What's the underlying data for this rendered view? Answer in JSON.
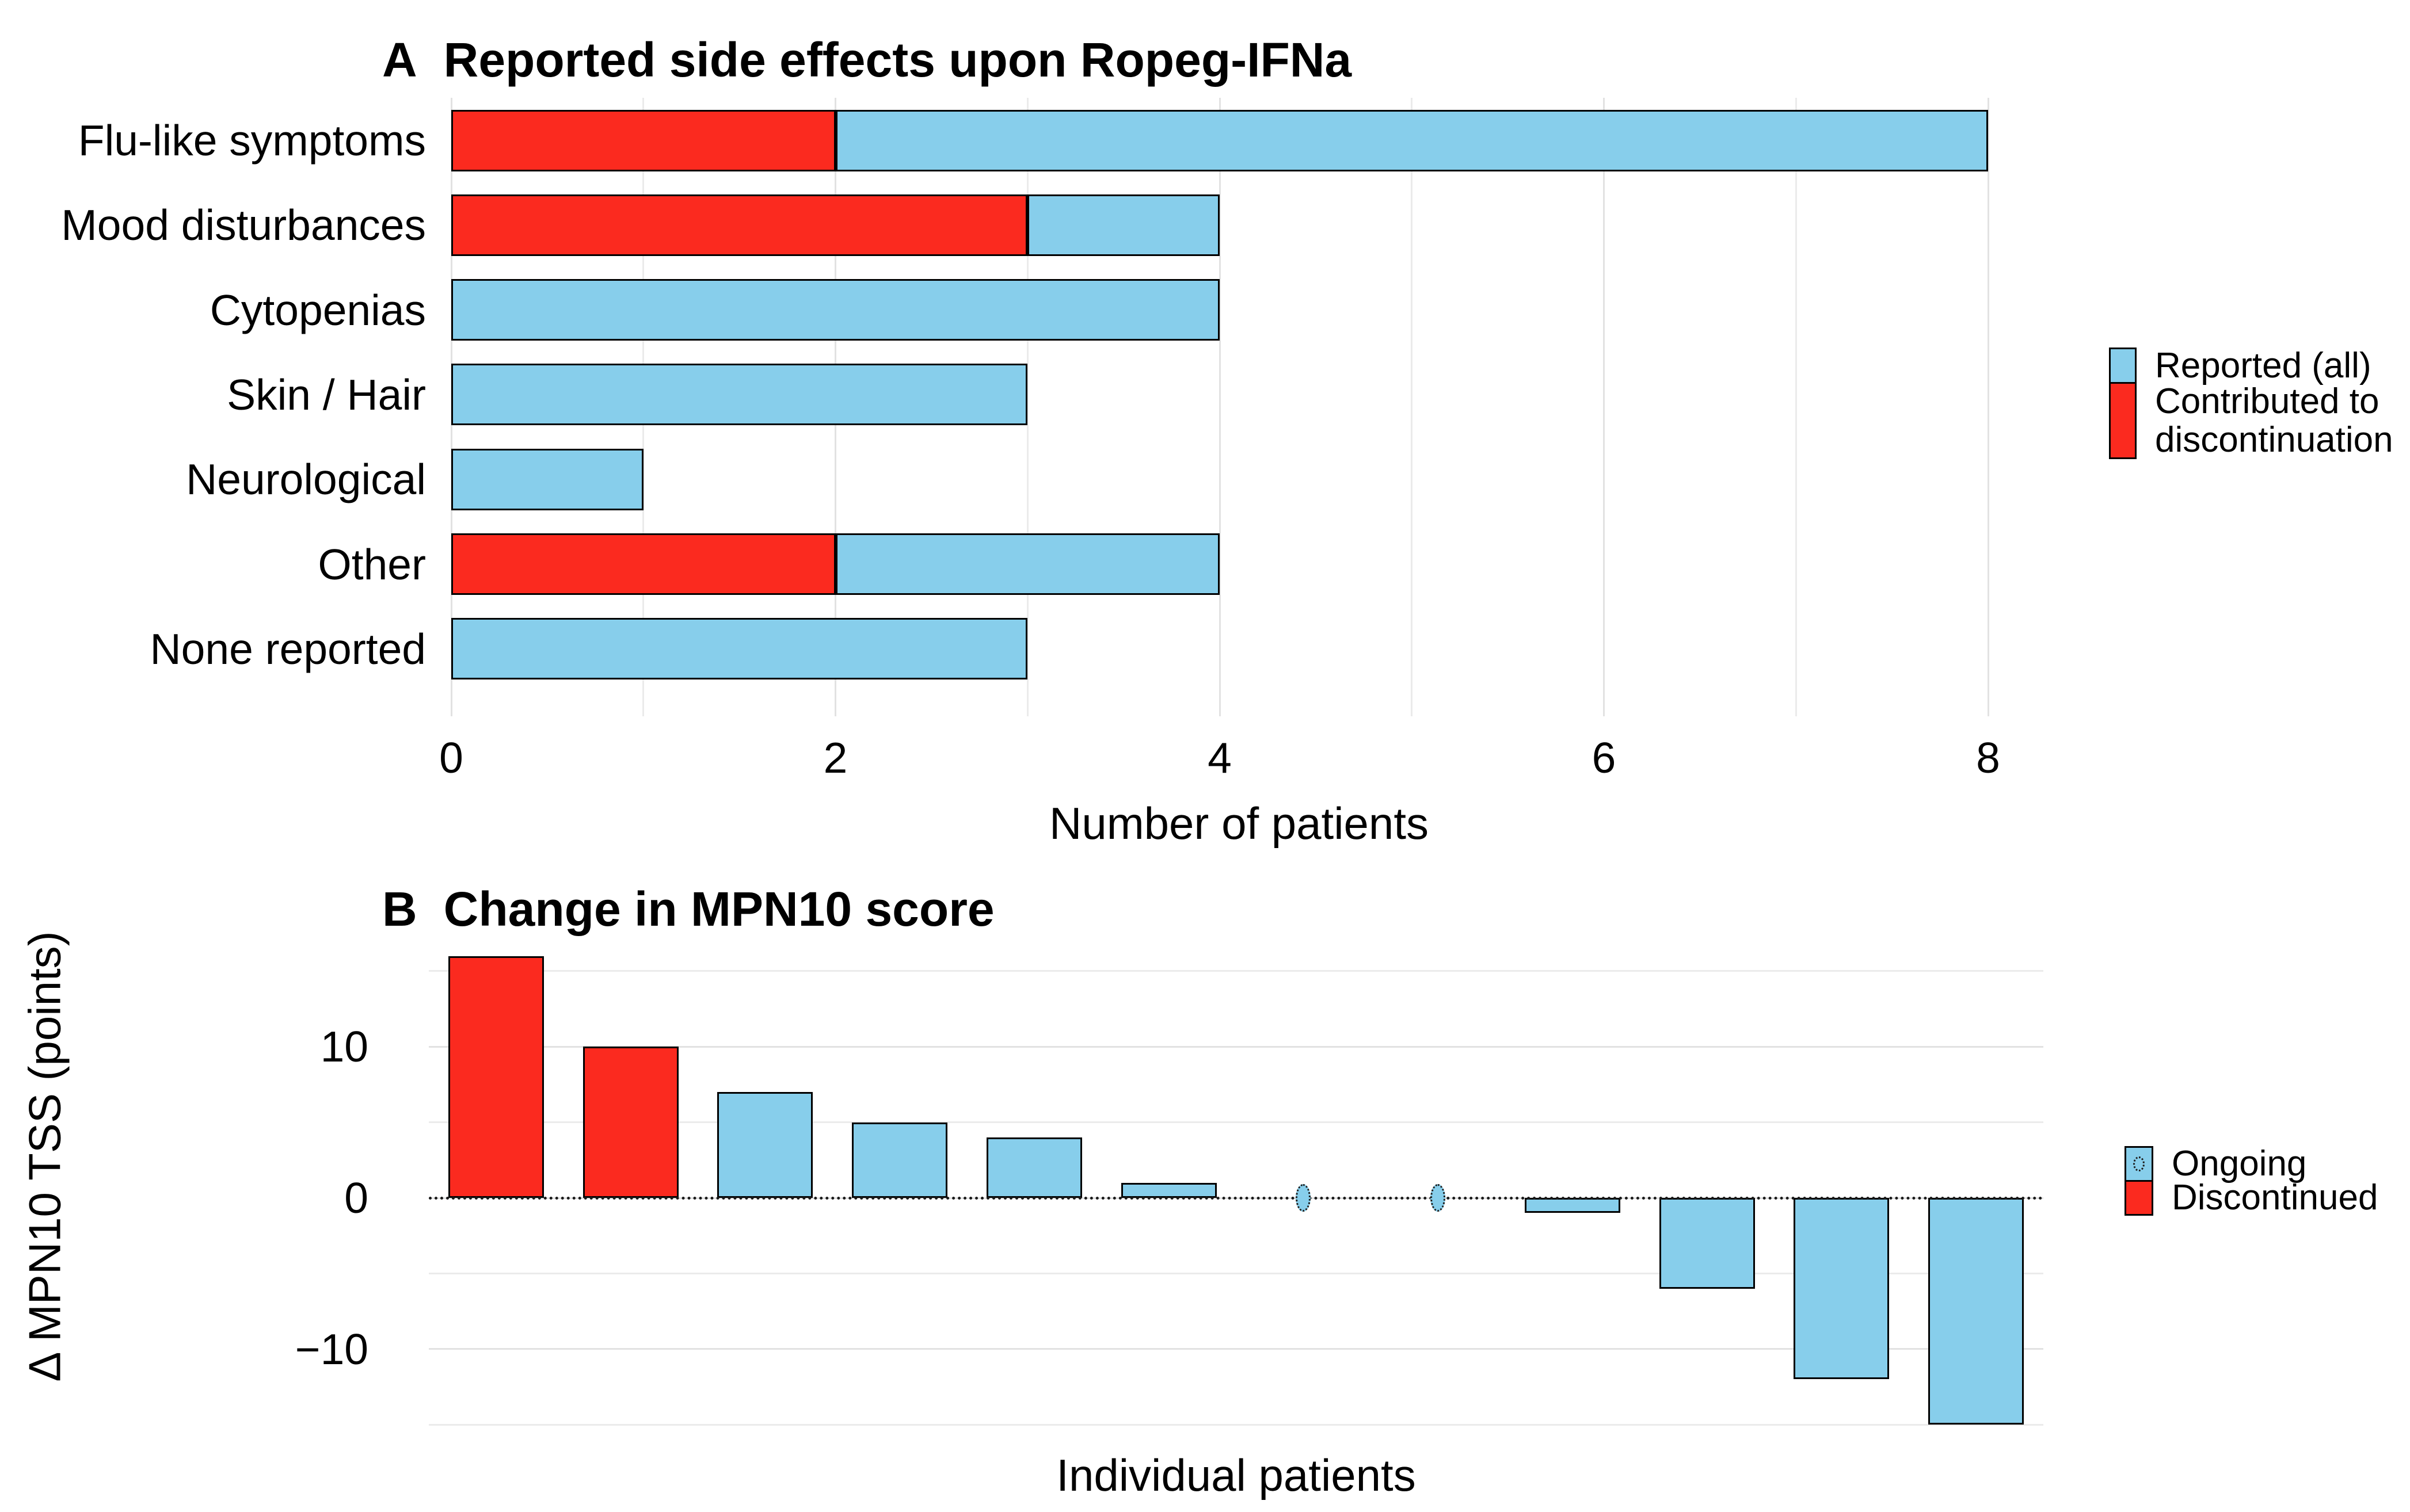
{
  "colors": {
    "reported_blue": "#87CEEB",
    "discontinued_red": "#FB2A1F",
    "bar_outline": "#000000",
    "gridline": "#EBEBEB",
    "gridline_major": "#E2E2E2",
    "zero_line": "#1A1A1A",
    "background": "#FFFFFF",
    "text": "#000000"
  },
  "panel_a": {
    "tag": "A",
    "title": "Reported side effects upon Ropeg-IFNa",
    "x_axis_label": "Number of patients",
    "x_ticks": [
      0,
      2,
      4,
      6,
      8
    ],
    "x_max": 8,
    "categories": [
      {
        "label": "Flu-like symptoms",
        "reported_total": 8,
        "contributed_to_discontinuation": 2
      },
      {
        "label": "Mood disturbances",
        "reported_total": 4,
        "contributed_to_discontinuation": 3
      },
      {
        "label": "Cytopenias",
        "reported_total": 4,
        "contributed_to_discontinuation": 0
      },
      {
        "label": "Skin / Hair",
        "reported_total": 3,
        "contributed_to_discontinuation": 0
      },
      {
        "label": "Neurological",
        "reported_total": 1,
        "contributed_to_discontinuation": 0
      },
      {
        "label": "Other",
        "reported_total": 4,
        "contributed_to_discontinuation": 2
      },
      {
        "label": "None reported",
        "reported_total": 3,
        "contributed_to_discontinuation": 0
      }
    ],
    "legend": {
      "reported_label": "Reported (all)",
      "discontinuation_label": "Contributed to discontinuation"
    }
  },
  "panel_b": {
    "tag": "B",
    "title": "Change in MPN10 score",
    "y_axis_label": "Δ MPN10 TSS (points)",
    "x_axis_label": "Individual patients",
    "y_ticks": [
      10,
      0,
      -10
    ],
    "y_gridlines": [
      15,
      10,
      5,
      0,
      -5,
      -10,
      -15
    ],
    "patients": [
      {
        "delta": 16,
        "status": "Discontinued"
      },
      {
        "delta": 10,
        "status": "Discontinued"
      },
      {
        "delta": 7,
        "status": "Ongoing"
      },
      {
        "delta": 5,
        "status": "Ongoing"
      },
      {
        "delta": 4,
        "status": "Ongoing"
      },
      {
        "delta": 1,
        "status": "Ongoing"
      },
      {
        "delta": 0,
        "status": "Ongoing"
      },
      {
        "delta": 0,
        "status": "Ongoing"
      },
      {
        "delta": -1,
        "status": "Ongoing"
      },
      {
        "delta": -6,
        "status": "Ongoing"
      },
      {
        "delta": -12,
        "status": "Ongoing"
      },
      {
        "delta": -15,
        "status": "Ongoing"
      }
    ],
    "legend": {
      "ongoing_label": "Ongoing",
      "discontinued_label": "Discontinued"
    }
  },
  "chart_data": [
    {
      "type": "bar",
      "panel": "A",
      "orientation": "horizontal",
      "title": "Reported side effects upon Ropeg-IFNa",
      "categories": [
        "Flu-like symptoms",
        "Mood disturbances",
        "Cytopenias",
        "Skin / Hair",
        "Neurological",
        "Other",
        "None reported"
      ],
      "series": [
        {
          "name": "Contributed to discontinuation",
          "color": "#FB2A1F",
          "values": [
            2,
            3,
            0,
            0,
            0,
            2,
            0
          ]
        },
        {
          "name": "Reported (all)",
          "color": "#87CEEB",
          "values": [
            6,
            1,
            4,
            3,
            1,
            2,
            3
          ]
        }
      ],
      "stacked": true,
      "totals": [
        8,
        4,
        4,
        3,
        1,
        4,
        3
      ],
      "xlabel": "Number of patients",
      "xlim": [
        0,
        8
      ],
      "xticks": [
        0,
        2,
        4,
        6,
        8
      ],
      "grid": "vertical light-gray gridlines, minor lines at odd integers, no axis line",
      "legend_position": "right"
    },
    {
      "type": "bar",
      "panel": "B",
      "orientation": "vertical",
      "title": "Change in MPN10 score",
      "xlabel": "Individual patients",
      "ylabel": "Δ MPN10 TSS (points)",
      "values": [
        16,
        10,
        7,
        5,
        4,
        1,
        0,
        0,
        -1,
        -6,
        -12,
        -15
      ],
      "groups": [
        "Discontinued",
        "Discontinued",
        "Ongoing",
        "Ongoing",
        "Ongoing",
        "Ongoing",
        "Ongoing",
        "Ongoing",
        "Ongoing",
        "Ongoing",
        "Ongoing",
        "Ongoing"
      ],
      "group_colors": {
        "Ongoing": "#87CEEB",
        "Discontinued": "#FB2A1F"
      },
      "ylim": [
        -15.5,
        16.5
      ],
      "yticks": [
        10,
        0,
        -10
      ],
      "gridlines_y": [
        15,
        10,
        5,
        0,
        -5,
        -10,
        -15
      ],
      "zero_line": "black dotted line at y=0",
      "zero_markers": "patients with delta 0 drawn as small dotted-outline ellipses on the zero line",
      "legend_position": "right"
    }
  ]
}
